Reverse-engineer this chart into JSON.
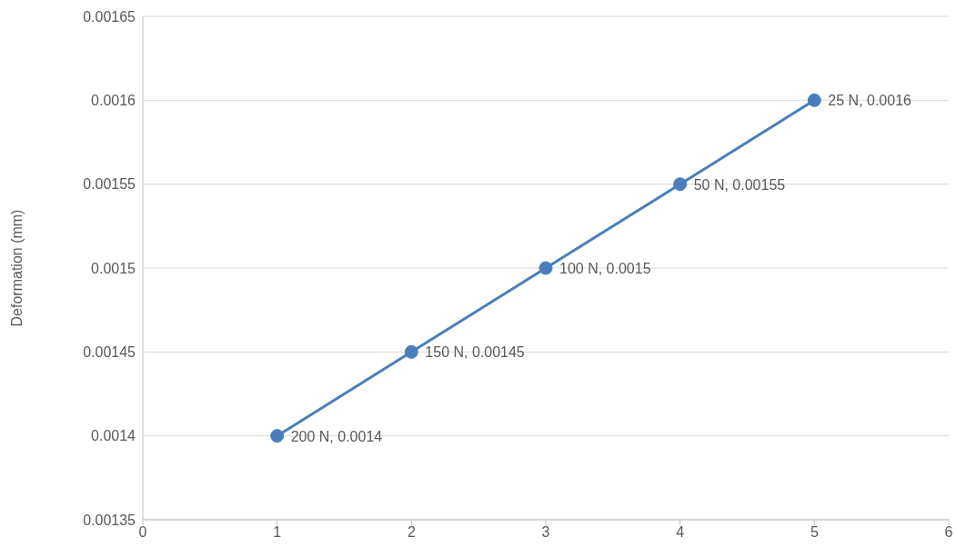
{
  "chart_data": {
    "type": "line",
    "ylabel": "Deformation (mm)",
    "x": [
      1,
      2,
      3,
      4,
      5
    ],
    "series": [
      {
        "color": "#4a7ebb",
        "values": [
          0.0014,
          0.00145,
          0.0015,
          0.00155,
          0.0016
        ],
        "value_labels": [
          "200 N, 0.0014",
          "150 N, 0.00145",
          "100 N, 0.0015",
          "50 N, 0.00155",
          "25 N, 0.0016"
        ]
      }
    ],
    "xlim": [
      0,
      6
    ],
    "xticks": [
      0,
      1,
      2,
      3,
      4,
      5,
      6
    ],
    "ylim": [
      0.00135,
      0.00165
    ],
    "yticks": [
      0.00135,
      0.0014,
      0.00145,
      0.0015,
      0.00155,
      0.0016,
      0.00165
    ],
    "grid": "y",
    "marker": "circle",
    "line_style": "solid",
    "legend": false
  }
}
